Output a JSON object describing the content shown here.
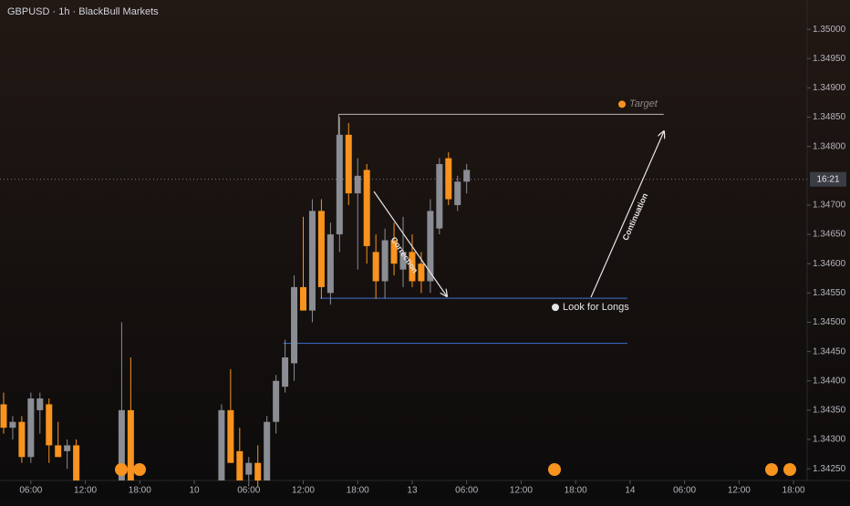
{
  "chart_data": {
    "type": "candlestick",
    "title": "GBPUSD · 1h · BlackBull Markets",
    "countdown": "16:21",
    "up_color": "#8a8d93",
    "down_color": "#f7931e",
    "x": [
      3,
      4,
      5,
      6,
      7,
      8,
      9,
      10,
      11,
      16,
      17,
      27,
      28,
      29,
      30,
      31,
      32,
      33,
      34,
      35,
      36,
      37,
      38,
      39,
      40,
      41,
      42,
      43,
      44,
      45,
      46,
      47,
      48,
      49,
      50,
      51,
      52,
      53,
      54
    ],
    "open": [
      1.3436,
      1.3432,
      1.3433,
      1.3427,
      1.3435,
      1.3436,
      1.3429,
      1.3428,
      1.3429,
      1.3423,
      1.3435,
      1.3423,
      1.3435,
      1.3428,
      1.3424,
      1.3426,
      1.3423,
      1.3433,
      1.3439,
      1.3443,
      1.3456,
      1.3452,
      1.3469,
      1.3455,
      1.3465,
      1.3482,
      1.3472,
      1.3476,
      1.3462,
      1.3457,
      1.3464,
      1.3459,
      1.3462,
      1.346,
      1.3457,
      1.3466,
      1.3478,
      1.347,
      1.3474
    ],
    "high": [
      1.3438,
      1.3434,
      1.3434,
      1.3438,
      1.3438,
      1.3437,
      1.3433,
      1.343,
      1.343,
      1.345,
      1.3444,
      1.3436,
      1.3442,
      1.3432,
      1.3427,
      1.3429,
      1.3434,
      1.3441,
      1.3447,
      1.3458,
      1.3468,
      1.3471,
      1.3471,
      1.3467,
      1.3485,
      1.3484,
      1.3478,
      1.3477,
      1.3465,
      1.3466,
      1.3467,
      1.3468,
      1.3465,
      1.3462,
      1.3471,
      1.3478,
      1.3479,
      1.3475,
      1.3477
    ],
    "low": [
      1.3431,
      1.343,
      1.3426,
      1.3426,
      1.3431,
      1.3426,
      1.3427,
      1.3425,
      1.3423,
      1.3423,
      1.3423,
      1.3423,
      1.3426,
      1.3423,
      1.3422,
      1.3422,
      1.3423,
      1.3431,
      1.3438,
      1.344,
      1.3452,
      1.345,
      1.3454,
      1.3453,
      1.3462,
      1.347,
      1.3459,
      1.346,
      1.3454,
      1.3454,
      1.3458,
      1.3456,
      1.3456,
      1.3455,
      1.3455,
      1.3465,
      1.347,
      1.3469,
      1.3472
    ],
    "close": [
      1.3432,
      1.3433,
      1.3427,
      1.3437,
      1.3437,
      1.3429,
      1.3427,
      1.3429,
      1.3423,
      1.3435,
      1.3423,
      1.3435,
      1.3426,
      1.3423,
      1.3426,
      1.3423,
      1.3433,
      1.344,
      1.3444,
      1.3456,
      1.3452,
      1.3469,
      1.3456,
      1.3465,
      1.3482,
      1.3472,
      1.3475,
      1.3463,
      1.3457,
      1.3464,
      1.346,
      1.3462,
      1.3457,
      1.3457,
      1.3469,
      1.3477,
      1.3471,
      1.3474,
      1.3476
    ],
    "current_price": 1.34744,
    "levels": [
      {
        "label": "Target",
        "value": 1.34855,
        "color": "#b8b8b8"
      },
      {
        "label": "Look for Longs",
        "value": 1.34541,
        "color": "#3d6fd6"
      },
      {
        "value": 1.34464,
        "color": "#3d6fd6"
      }
    ],
    "annotations": [
      "Correction",
      "Continuation"
    ],
    "xlim": [
      2.6,
      91.5
    ],
    "xticks": [
      {
        "value": 6,
        "label": "06:00"
      },
      {
        "value": 12,
        "label": "12:00"
      },
      {
        "value": 18,
        "label": "18:00"
      },
      {
        "value": 24,
        "label": "10"
      },
      {
        "value": 30,
        "label": "06:00"
      },
      {
        "value": 36,
        "label": "12:00"
      },
      {
        "value": 42,
        "label": "18:00"
      },
      {
        "value": 48,
        "label": "13"
      },
      {
        "value": 54,
        "label": "06:00"
      },
      {
        "value": 60,
        "label": "12:00"
      },
      {
        "value": 66,
        "label": "18:00"
      },
      {
        "value": 72,
        "label": "14"
      },
      {
        "value": 78,
        "label": "06:00"
      },
      {
        "value": 84,
        "label": "12:00"
      },
      {
        "value": 90,
        "label": "18:00"
      }
    ],
    "ylim": [
      1.3423,
      1.3505
    ],
    "yticks": [
      {
        "value": 1.35,
        "label": "1.35000"
      },
      {
        "value": 1.3495,
        "label": "1.34950"
      },
      {
        "value": 1.349,
        "label": "1.34900"
      },
      {
        "value": 1.3485,
        "label": "1.34850"
      },
      {
        "value": 1.348,
        "label": "1.34800"
      },
      {
        "value": 1.347,
        "label": "1.34700"
      },
      {
        "value": 1.3465,
        "label": "1.34650"
      },
      {
        "value": 1.346,
        "label": "1.34600"
      },
      {
        "value": 1.3455,
        "label": "1.34550"
      },
      {
        "value": 1.345,
        "label": "1.34500"
      },
      {
        "value": 1.3445,
        "label": "1.34450"
      },
      {
        "value": 1.344,
        "label": "1.34400"
      },
      {
        "value": 1.3435,
        "label": "1.34350"
      },
      {
        "value": 1.343,
        "label": "1.34300"
      },
      {
        "value": 1.3425,
        "label": "1.34250"
      }
    ]
  }
}
